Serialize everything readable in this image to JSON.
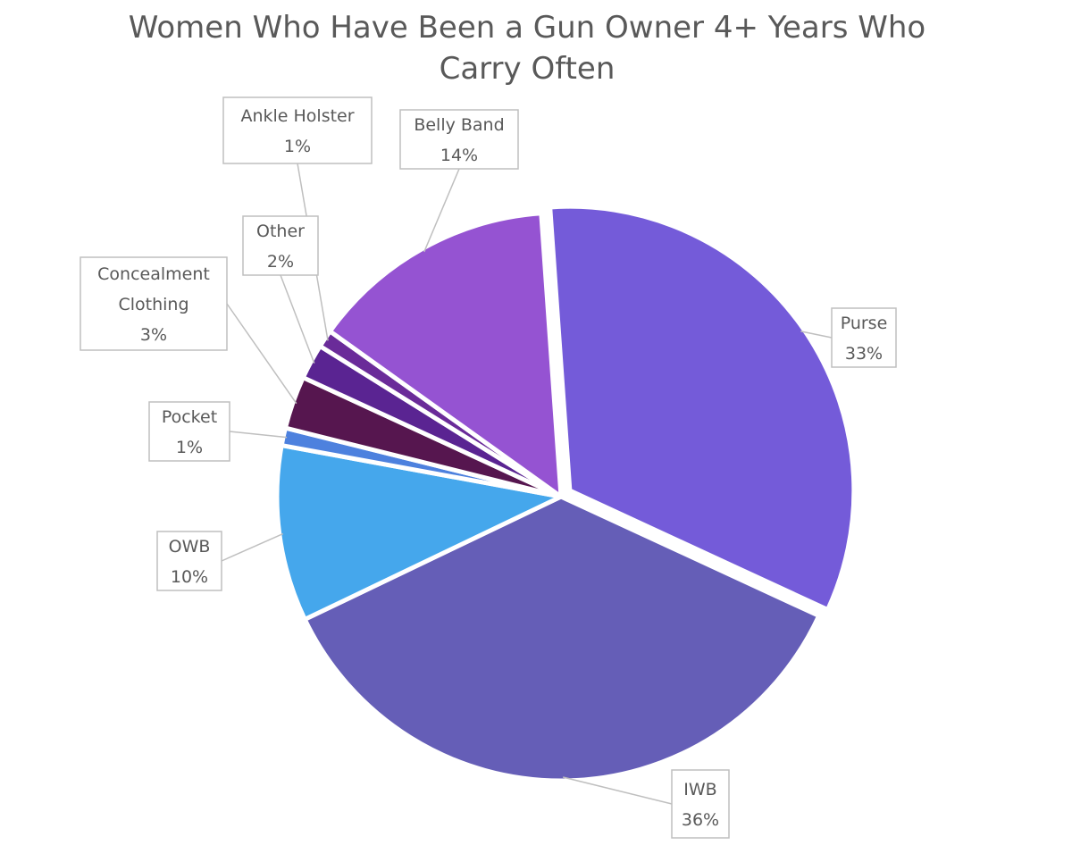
{
  "chart_data": {
    "type": "pie",
    "title_lines": [
      "Women Who Have Been a Gun Owner 4+ Years Who",
      "Carry Often"
    ],
    "slices": [
      {
        "name": "Purse",
        "value": 33,
        "label_value": "33%",
        "color": "#745BD9",
        "exploded": true
      },
      {
        "name": "IWB",
        "value": 36,
        "label_value": "36%",
        "color": "#655EB7",
        "exploded": false
      },
      {
        "name": "OWB",
        "value": 10,
        "label_value": "10%",
        "color": "#45A7EC",
        "exploded": false
      },
      {
        "name": "Pocket",
        "value": 1,
        "label_value": "1%",
        "color": "#4D81DE",
        "exploded": false
      },
      {
        "name": "Concealment Clothing",
        "label_lines": [
          "Concealment",
          "Clothing"
        ],
        "value": 3,
        "label_value": "3%",
        "color": "#56164F",
        "exploded": false
      },
      {
        "name": "Other",
        "value": 2,
        "label_value": "2%",
        "color": "#5A2492",
        "exploded": false
      },
      {
        "name": "Ankle Holster",
        "value": 1,
        "label_value": "1%",
        "color": "#6A2B99",
        "exploded": false
      },
      {
        "name": "Belly Band",
        "value": 14,
        "label_value": "14%",
        "color": "#9553D2",
        "exploded": false
      }
    ],
    "legend": "none",
    "data_labels": "outside-with-leader-lines"
  }
}
